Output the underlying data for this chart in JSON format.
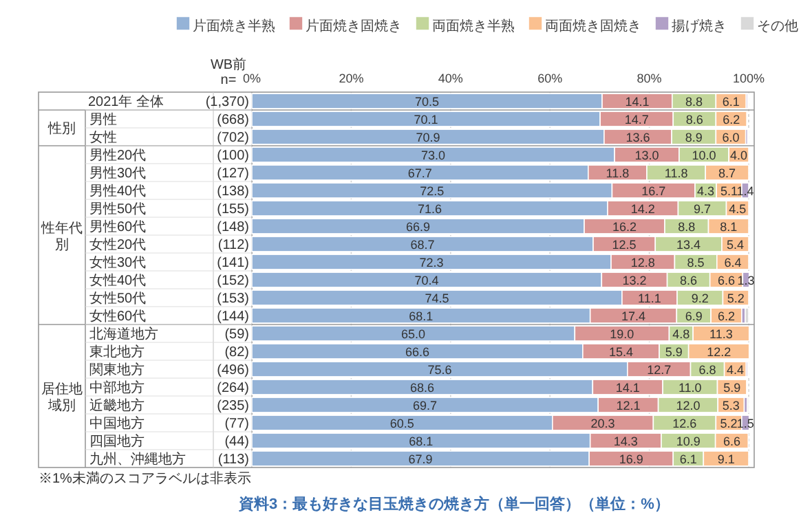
{
  "chart_data": {
    "type": "bar",
    "orientation": "horizontal",
    "stacked": true,
    "title": "資料3：最も好きな目玉焼きの焼き方（単一回答）（単位：%）",
    "categories": [
      "2021年 全体",
      "男性",
      "女性",
      "男性20代",
      "男性30代",
      "男性40代",
      "男性50代",
      "男性60代",
      "女性20代",
      "女性30代",
      "女性40代",
      "女性50代",
      "女性60代",
      "北海道地方",
      "東北地方",
      "関東地方",
      "中部地方",
      "近畿地方",
      "中国地方",
      "四国地方",
      "九州、沖縄地方"
    ],
    "series": [
      {
        "name": "片面焼き半熟",
        "color": "#95b3d7",
        "values": [
          70.5,
          70.1,
          70.9,
          73.0,
          67.7,
          72.5,
          71.6,
          66.9,
          68.7,
          72.3,
          70.4,
          74.5,
          68.1,
          65.0,
          66.6,
          75.6,
          68.6,
          69.7,
          60.5,
          68.1,
          67.9
        ],
        "value_labels": [
          "70.5",
          "70.1",
          "70.9",
          "73.0",
          "67.7",
          "72.5",
          "71.6",
          "66.9",
          "68.7",
          "72.3",
          "70.4",
          "74.5",
          "68.1",
          "65.0",
          "66.6",
          "75.6",
          "68.6",
          "69.7",
          "60.5",
          "68.1",
          "67.9"
        ]
      },
      {
        "name": "片面焼き固焼き",
        "color": "#da9694",
        "values": [
          14.1,
          14.7,
          13.6,
          13.0,
          11.8,
          16.7,
          14.2,
          16.2,
          12.5,
          12.8,
          13.2,
          11.1,
          17.4,
          19.0,
          15.4,
          12.7,
          14.1,
          12.1,
          20.3,
          14.3,
          16.9
        ],
        "value_labels": [
          "14.1",
          "14.7",
          "13.6",
          "13.0",
          "11.8",
          "16.7",
          "14.2",
          "16.2",
          "12.5",
          "12.8",
          "13.2",
          "11.1",
          "17.4",
          "19.0",
          "15.4",
          "12.7",
          "14.1",
          "12.1",
          "20.3",
          "14.3",
          "16.9"
        ]
      },
      {
        "name": "両面焼き半熟",
        "color": "#c3d69b",
        "values": [
          8.8,
          8.6,
          8.9,
          10.0,
          11.8,
          4.3,
          9.7,
          8.8,
          13.4,
          8.5,
          8.6,
          9.2,
          6.9,
          4.8,
          5.9,
          6.8,
          11.0,
          12.0,
          12.6,
          10.9,
          6.1
        ],
        "value_labels": [
          "8.8",
          "8.6",
          "8.9",
          "10.0",
          "11.8",
          "4.3",
          "9.7",
          "8.8",
          "13.4",
          "8.5",
          "8.6",
          "9.2",
          "6.9",
          "4.8",
          "5.9",
          "6.8",
          "11.0",
          "12.0",
          "12.6",
          "10.9",
          "6.1"
        ]
      },
      {
        "name": "両面焼き固焼き",
        "color": "#fac090",
        "values": [
          6.1,
          6.2,
          6.0,
          4.0,
          8.7,
          5.1,
          4.5,
          8.1,
          5.4,
          6.4,
          6.6,
          5.2,
          6.2,
          11.3,
          12.2,
          4.4,
          5.9,
          5.3,
          5.2,
          6.6,
          9.1
        ],
        "value_labels": [
          "6.1",
          "6.2",
          "6.0",
          "4.0",
          "8.7",
          "5.1",
          "4.5",
          "8.1",
          "5.4",
          "6.4",
          "6.6",
          "5.2",
          "6.2",
          "11.3",
          "12.2",
          "4.4",
          "5.9",
          "5.3",
          "5.2",
          "6.6",
          "9.1"
        ]
      },
      {
        "name": "揚げ焼き",
        "color": "#b1a0c7",
        "values": [
          0.3,
          null,
          0.4,
          0,
          0,
          1.4,
          0,
          0,
          0,
          0,
          1.3,
          0,
          0.7,
          0,
          0,
          0.3,
          null,
          0.6,
          1.5,
          0,
          0
        ],
        "value_labels": [
          null,
          null,
          null,
          null,
          null,
          "1.4",
          null,
          null,
          null,
          null,
          "1.3",
          null,
          null,
          null,
          null,
          null,
          null,
          null,
          "1.5",
          null,
          null
        ]
      },
      {
        "name": "その他",
        "color": "#d9d9d9",
        "values": [
          0.2,
          null,
          0.2,
          0,
          0,
          0,
          0,
          0,
          0,
          0,
          0,
          0,
          0.7,
          0,
          0,
          0.2,
          0.2,
          0.3,
          0,
          0,
          0
        ]
      }
    ],
    "xlim": [
      0,
      100
    ],
    "xticks": [
      {
        "value": 0,
        "label": "0%"
      },
      {
        "value": 20,
        "label": "20%"
      },
      {
        "value": 40,
        "label": "40%"
      },
      {
        "value": 60,
        "label": "60%"
      },
      {
        "value": 80,
        "label": "80%"
      },
      {
        "value": 100,
        "label": "100%"
      }
    ],
    "grid": "x",
    "legend": "top",
    "annotations": [
      "WB前",
      "n=",
      "(1,370)",
      "(668)",
      "(702)",
      "(100)",
      "(127)",
      "(138)",
      "(155)",
      "(148)",
      "(112)",
      "(141)",
      "(152)",
      "(153)",
      "(144)",
      "(59)",
      "(82)",
      "(496)",
      "(264)",
      "(235)",
      "(77)",
      "(44)",
      "(113)",
      "性別",
      "性年代別",
      "居住地域別",
      "※1%未満のスコアラベルは非表示"
    ]
  }
}
